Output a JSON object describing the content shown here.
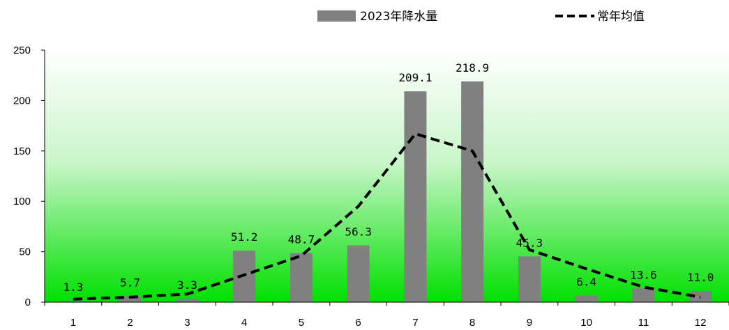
{
  "chart_data": {
    "type": "bar",
    "categories": [
      "1",
      "2",
      "3",
      "4",
      "5",
      "6",
      "7",
      "8",
      "9",
      "10",
      "11",
      "12"
    ],
    "series": [
      {
        "name": "2023年降水量",
        "type": "bar",
        "color": "#808080",
        "values": [
          1.3,
          5.7,
          3.3,
          51.2,
          48.7,
          56.3,
          209.1,
          218.9,
          45.3,
          6.4,
          13.6,
          11.0
        ]
      },
      {
        "name": "常年均值",
        "type": "line",
        "style": "dashed",
        "color": "#000000",
        "values": [
          3,
          5,
          8,
          27,
          46,
          95,
          167,
          150,
          52,
          33,
          15,
          5
        ]
      }
    ],
    "data_labels": [
      "1.3",
      "5.7",
      "3.3",
      "51.2",
      "48.7",
      "56.3",
      "209.1",
      "218.9",
      "45.3",
      "6.4",
      "13.6",
      "11.0"
    ],
    "yticks": [
      "0",
      "50",
      "100",
      "150",
      "200",
      "250"
    ],
    "ylim": [
      0,
      250
    ],
    "legend_position": "top-right",
    "background": "gradient white-to-green",
    "gradient_top": "#ffffff",
    "gradient_bottom": "#00e000",
    "grid": false
  }
}
